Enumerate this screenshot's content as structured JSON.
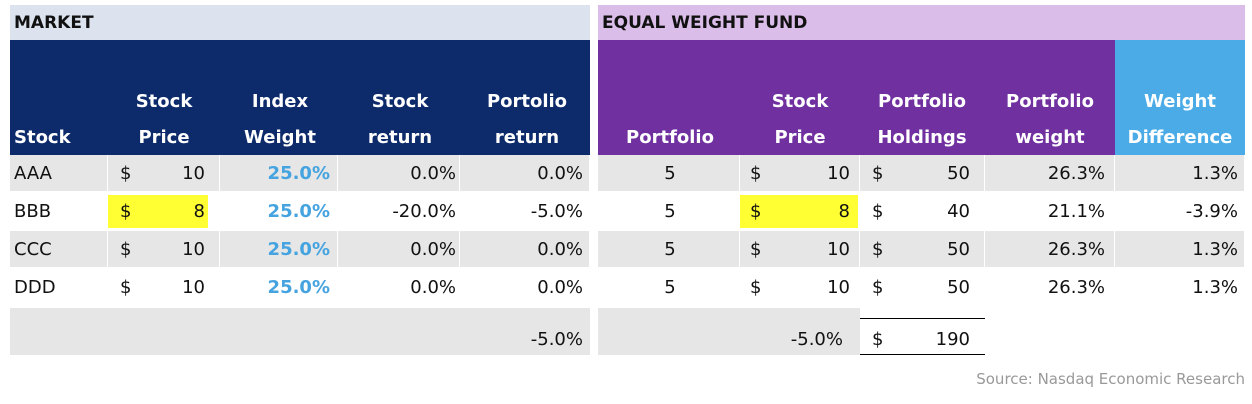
{
  "market": {
    "title": "MARKET",
    "headers": [
      [
        "Stock"
      ],
      [
        "Stock",
        "Price"
      ],
      [
        "Index",
        "Weight"
      ],
      [
        "Stock",
        "return"
      ],
      [
        "Portolio",
        "return"
      ]
    ],
    "rows": [
      [
        "AAA",
        "$",
        "10",
        "25.0%",
        "0.0%",
        "0.0%"
      ],
      [
        "BBB",
        "$",
        "8",
        "25.0%",
        "-20.0%",
        "-5.0%"
      ],
      [
        "CCC",
        "$",
        "10",
        "25.0%",
        "0.0%",
        "0.0%"
      ],
      [
        "DDD",
        "$",
        "10",
        "25.0%",
        "0.0%",
        "0.0%"
      ]
    ],
    "total": "-5.0%"
  },
  "fund": {
    "title": "EQUAL WEIGHT FUND",
    "headers": [
      [
        "Portfolio"
      ],
      [
        "Stock",
        "Price"
      ],
      [
        "Portfolio",
        "Holdings"
      ],
      [
        "Portfolio",
        "weight"
      ],
      [
        "Weight",
        "Difference"
      ]
    ],
    "rows": [
      [
        "5",
        "$",
        "10",
        "$",
        "50",
        "26.3%",
        "1.3%"
      ],
      [
        "5",
        "$",
        "8",
        "$",
        "40",
        "21.1%",
        "-3.9%"
      ],
      [
        "5",
        "$",
        "10",
        "$",
        "50",
        "26.3%",
        "1.3%"
      ],
      [
        "5",
        "$",
        "10",
        "$",
        "50",
        "26.3%",
        "1.3%"
      ]
    ],
    "total": {
      "return": "-5.0%",
      "currency": "$",
      "holdings": "190"
    }
  },
  "source": "Source: Nasdaq Economic Research"
}
